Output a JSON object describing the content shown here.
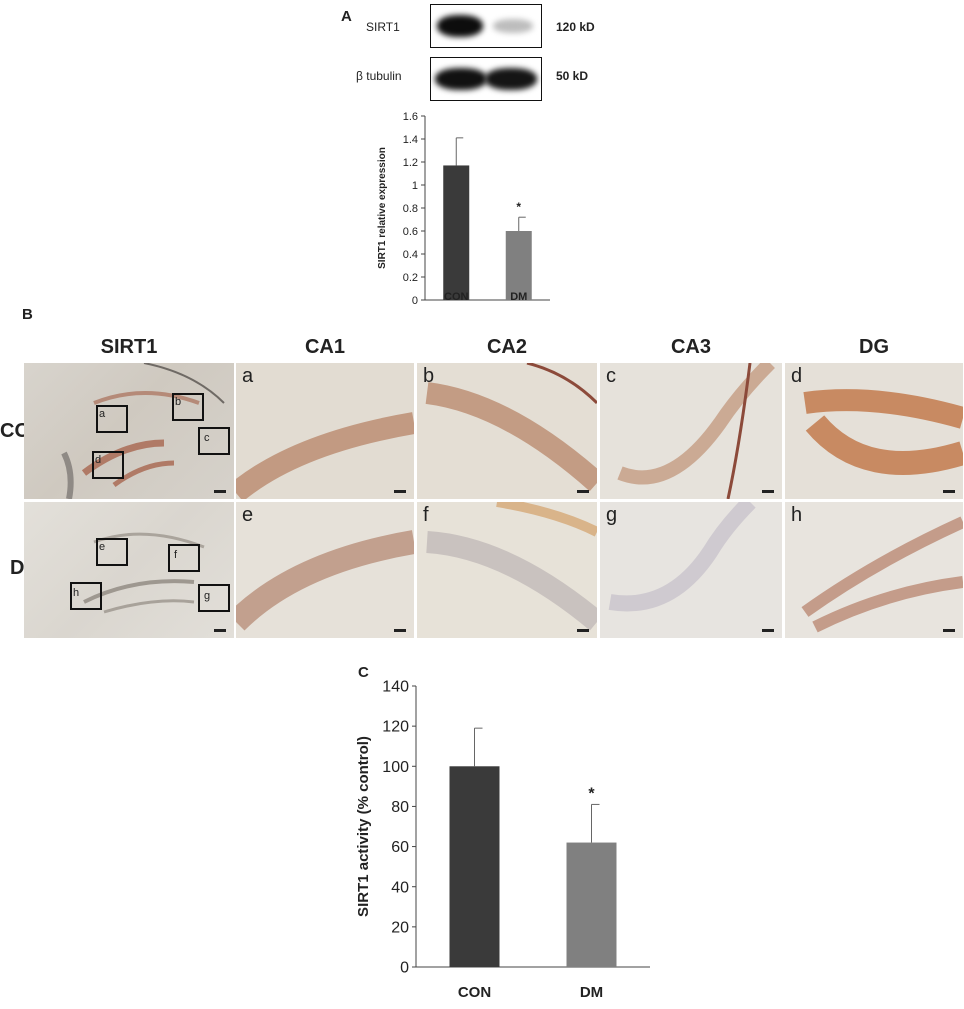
{
  "panel_a": {
    "letter": "A",
    "blot": {
      "rows": [
        {
          "label": "SIRT1",
          "size": "120 kD"
        },
        {
          "label": "β tubulin",
          "size": "50 kD"
        }
      ]
    }
  },
  "panel_b": {
    "letter": "B",
    "column_headers": [
      "SIRT1",
      "CA1",
      "CA2",
      "CA3",
      "DG"
    ],
    "row_headers": [
      "CON",
      "DM"
    ],
    "overview_box_letters": {
      "con": [
        "a",
        "b",
        "c",
        "d"
      ],
      "dm": [
        "e",
        "f",
        "g",
        "h"
      ]
    },
    "tile_letters": {
      "con": [
        "a",
        "b",
        "c",
        "d"
      ],
      "dm": [
        "e",
        "f",
        "g",
        "h"
      ]
    }
  },
  "panel_c": {
    "letter": "C"
  },
  "chart_data": [
    {
      "type": "bar",
      "categories": [
        "CON",
        "DM"
      ],
      "values": [
        1.17,
        0.6
      ],
      "error": [
        0.24,
        0.12
      ],
      "significance": [
        "",
        "*"
      ],
      "colors": [
        "#3a3a3a",
        "#808080"
      ],
      "title": "",
      "xlabel": "",
      "ylabel": "SIRT1 relative expression",
      "ylim": [
        0,
        1.6
      ],
      "yticks": [
        0,
        0.2,
        0.4,
        0.6,
        0.8,
        1,
        1.2,
        1.4,
        1.6
      ],
      "ytick_labels": [
        "0",
        "0.2",
        "0.4",
        "0.6",
        "0.8",
        "1",
        "1.2",
        "1.4",
        "1.6"
      ],
      "grid": false
    },
    {
      "type": "bar",
      "categories": [
        "CON",
        "DM"
      ],
      "values": [
        100,
        62
      ],
      "error": [
        19,
        19
      ],
      "significance": [
        "",
        "*"
      ],
      "colors": [
        "#3a3a3a",
        "#808080"
      ],
      "title": "",
      "xlabel": "",
      "ylabel": "SIRT1 activity (% control)",
      "ylim": [
        0,
        140
      ],
      "yticks": [
        0,
        20,
        40,
        60,
        80,
        100,
        120,
        140
      ],
      "ytick_labels": [
        "0",
        "20",
        "40",
        "60",
        "80",
        "100",
        "120",
        "140"
      ],
      "grid": false
    }
  ]
}
